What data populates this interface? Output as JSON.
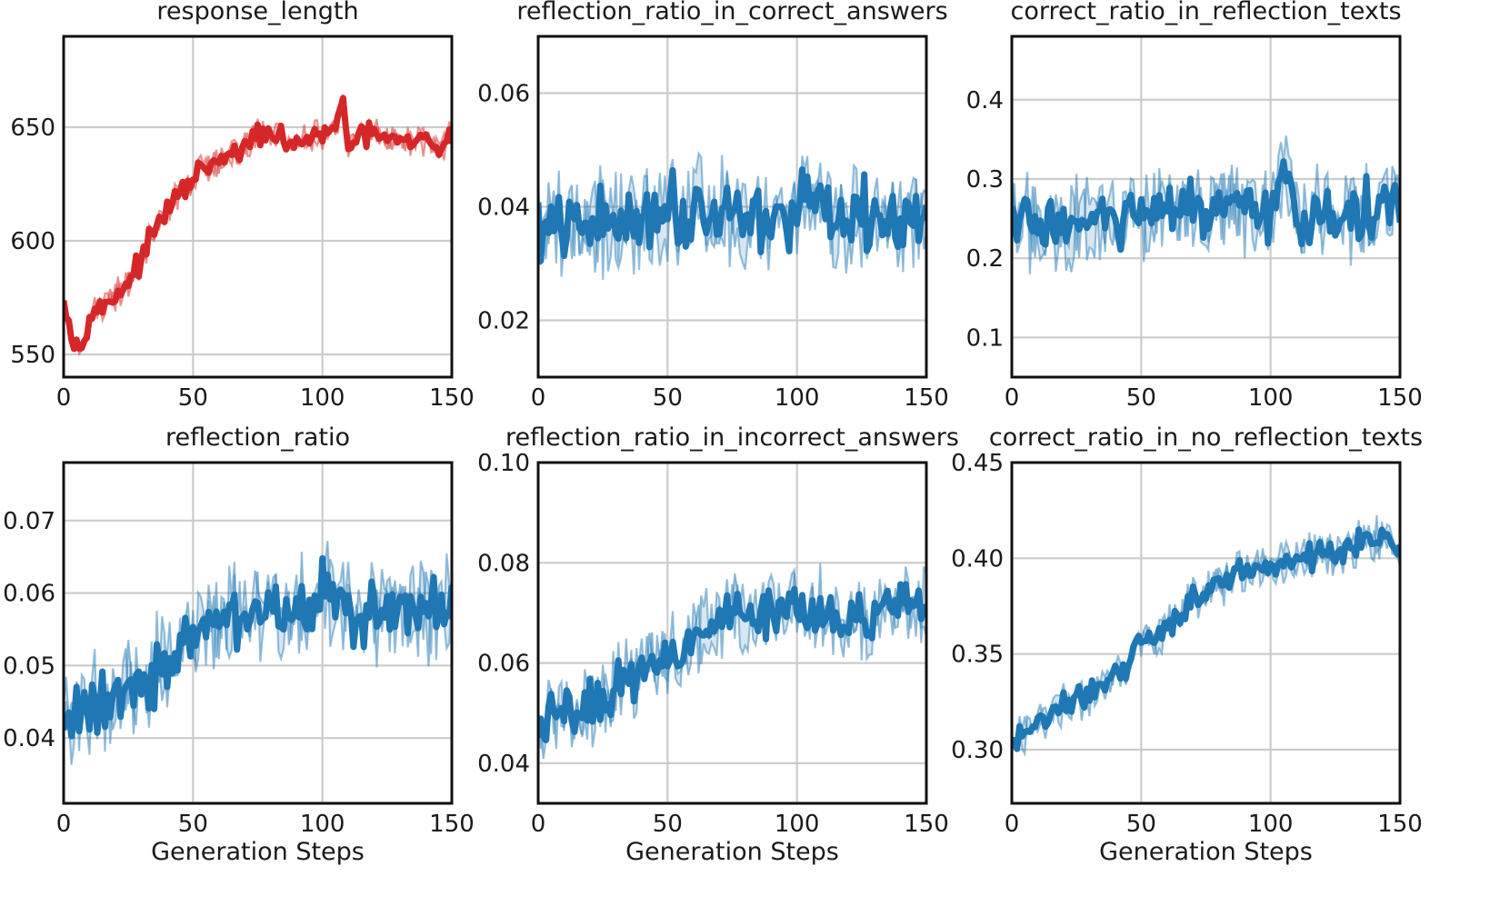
{
  "chart_data": [
    {
      "type": "line",
      "title": "response_length",
      "xlabel": "",
      "ylabel": "",
      "xlim": [
        0,
        150
      ],
      "ylim": [
        540,
        690
      ],
      "xticks": [
        0,
        50,
        100,
        150
      ],
      "yticks": [
        550,
        600,
        650
      ],
      "ytick_labels": [
        "550",
        "600",
        "650"
      ],
      "grid": true,
      "color": "#d62728",
      "keypoints": [
        [
          0,
          578
        ],
        [
          3,
          558
        ],
        [
          6,
          552
        ],
        [
          10,
          568
        ],
        [
          15,
          570
        ],
        [
          20,
          576
        ],
        [
          25,
          582
        ],
        [
          30,
          592
        ],
        [
          35,
          604
        ],
        [
          40,
          614
        ],
        [
          45,
          620
        ],
        [
          50,
          628
        ],
        [
          55,
          632
        ],
        [
          60,
          634
        ],
        [
          65,
          638
        ],
        [
          70,
          640
        ],
        [
          75,
          648
        ],
        [
          80,
          645
        ],
        [
          85,
          644
        ],
        [
          90,
          643
        ],
        [
          95,
          645
        ],
        [
          100,
          646
        ],
        [
          105,
          648
        ],
        [
          108,
          665
        ],
        [
          110,
          640
        ],
        [
          115,
          645
        ],
        [
          120,
          648
        ],
        [
          125,
          645
        ],
        [
          130,
          643
        ],
        [
          135,
          643
        ],
        [
          140,
          645
        ],
        [
          145,
          640
        ],
        [
          150,
          646
        ]
      ],
      "noise": 6
    },
    {
      "type": "line",
      "title": "reflection_ratio_in_correct_answers",
      "xlabel": "",
      "ylabel": "",
      "xlim": [
        0,
        150
      ],
      "ylim": [
        0.01,
        0.07
      ],
      "xticks": [
        0,
        50,
        100,
        150
      ],
      "yticks": [
        0.02,
        0.04,
        0.06
      ],
      "ytick_labels": [
        "0.02",
        "0.04",
        "0.06"
      ],
      "grid": true,
      "color": "#1f77b4",
      "keypoints": [
        [
          0,
          0.036
        ],
        [
          10,
          0.036
        ],
        [
          20,
          0.037
        ],
        [
          30,
          0.037
        ],
        [
          40,
          0.039
        ],
        [
          50,
          0.04
        ],
        [
          60,
          0.039
        ],
        [
          70,
          0.04
        ],
        [
          80,
          0.039
        ],
        [
          90,
          0.038
        ],
        [
          100,
          0.039
        ],
        [
          106,
          0.044
        ],
        [
          110,
          0.036
        ],
        [
          120,
          0.037
        ],
        [
          130,
          0.038
        ],
        [
          140,
          0.037
        ],
        [
          150,
          0.038
        ]
      ],
      "noise": 0.008
    },
    {
      "type": "line",
      "title": "correct_ratio_in_reflection_texts",
      "xlabel": "",
      "ylabel": "",
      "xlim": [
        0,
        150
      ],
      "ylim": [
        0.05,
        0.48
      ],
      "xticks": [
        0,
        50,
        100,
        150
      ],
      "yticks": [
        0.1,
        0.2,
        0.3,
        0.4
      ],
      "ytick_labels": [
        "0.1",
        "0.2",
        "0.3",
        "0.4"
      ],
      "grid": true,
      "color": "#1f77b4",
      "keypoints": [
        [
          0,
          0.25
        ],
        [
          10,
          0.24
        ],
        [
          20,
          0.25
        ],
        [
          30,
          0.24
        ],
        [
          40,
          0.25
        ],
        [
          50,
          0.25
        ],
        [
          60,
          0.26
        ],
        [
          70,
          0.26
        ],
        [
          80,
          0.26
        ],
        [
          90,
          0.25
        ],
        [
          100,
          0.26
        ],
        [
          106,
          0.3
        ],
        [
          110,
          0.25
        ],
        [
          120,
          0.26
        ],
        [
          130,
          0.25
        ],
        [
          140,
          0.26
        ],
        [
          150,
          0.26
        ]
      ],
      "noise": 0.05
    },
    {
      "type": "line",
      "title": "reflection_ratio",
      "xlabel": "Generation Steps",
      "ylabel": "",
      "xlim": [
        0,
        150
      ],
      "ylim": [
        0.031,
        0.078
      ],
      "xticks": [
        0,
        50,
        100,
        150
      ],
      "yticks": [
        0.04,
        0.05,
        0.06,
        0.07
      ],
      "ytick_labels": [
        "0.04",
        "0.05",
        "0.06",
        "0.07"
      ],
      "grid": true,
      "color": "#1f77b4",
      "keypoints": [
        [
          0,
          0.041
        ],
        [
          10,
          0.045
        ],
        [
          20,
          0.046
        ],
        [
          30,
          0.048
        ],
        [
          40,
          0.051
        ],
        [
          50,
          0.053
        ],
        [
          60,
          0.056
        ],
        [
          70,
          0.057
        ],
        [
          80,
          0.058
        ],
        [
          90,
          0.058
        ],
        [
          100,
          0.059
        ],
        [
          105,
          0.061
        ],
        [
          110,
          0.057
        ],
        [
          120,
          0.057
        ],
        [
          130,
          0.057
        ],
        [
          140,
          0.057
        ],
        [
          150,
          0.058
        ]
      ],
      "noise": 0.006
    },
    {
      "type": "line",
      "title": "reflection_ratio_in_incorrect_answers",
      "xlabel": "Generation Steps",
      "ylabel": "",
      "xlim": [
        0,
        150
      ],
      "ylim": [
        0.032,
        0.1
      ],
      "xticks": [
        0,
        50,
        100,
        150
      ],
      "yticks": [
        0.04,
        0.06,
        0.08,
        0.1
      ],
      "ytick_labels": [
        "0.04",
        "0.06",
        "0.08",
        "0.10"
      ],
      "grid": true,
      "color": "#1f77b4",
      "keypoints": [
        [
          0,
          0.047
        ],
        [
          10,
          0.05
        ],
        [
          20,
          0.051
        ],
        [
          30,
          0.055
        ],
        [
          40,
          0.059
        ],
        [
          50,
          0.062
        ],
        [
          60,
          0.066
        ],
        [
          70,
          0.068
        ],
        [
          80,
          0.07
        ],
        [
          90,
          0.071
        ],
        [
          100,
          0.072
        ],
        [
          110,
          0.071
        ],
        [
          120,
          0.07
        ],
        [
          130,
          0.069
        ],
        [
          140,
          0.07
        ],
        [
          150,
          0.071
        ]
      ],
      "noise": 0.007
    },
    {
      "type": "line",
      "title": "correct_ratio_in_no_reflection_texts",
      "xlabel": "Generation Steps",
      "ylabel": "",
      "xlim": [
        0,
        150
      ],
      "ylim": [
        0.272,
        0.45
      ],
      "xticks": [
        0,
        50,
        100,
        150
      ],
      "yticks": [
        0.3,
        0.35,
        0.4,
        0.45
      ],
      "ytick_labels": [
        "0.30",
        "0.35",
        "0.40",
        "0.45"
      ],
      "grid": true,
      "color": "#1f77b4",
      "keypoints": [
        [
          0,
          0.3
        ],
        [
          10,
          0.315
        ],
        [
          20,
          0.322
        ],
        [
          30,
          0.33
        ],
        [
          40,
          0.34
        ],
        [
          50,
          0.352
        ],
        [
          60,
          0.365
        ],
        [
          70,
          0.378
        ],
        [
          80,
          0.386
        ],
        [
          90,
          0.392
        ],
        [
          100,
          0.398
        ],
        [
          110,
          0.4
        ],
        [
          120,
          0.403
        ],
        [
          130,
          0.405
        ],
        [
          140,
          0.41
        ],
        [
          150,
          0.408
        ]
      ],
      "noise": 0.01
    }
  ]
}
